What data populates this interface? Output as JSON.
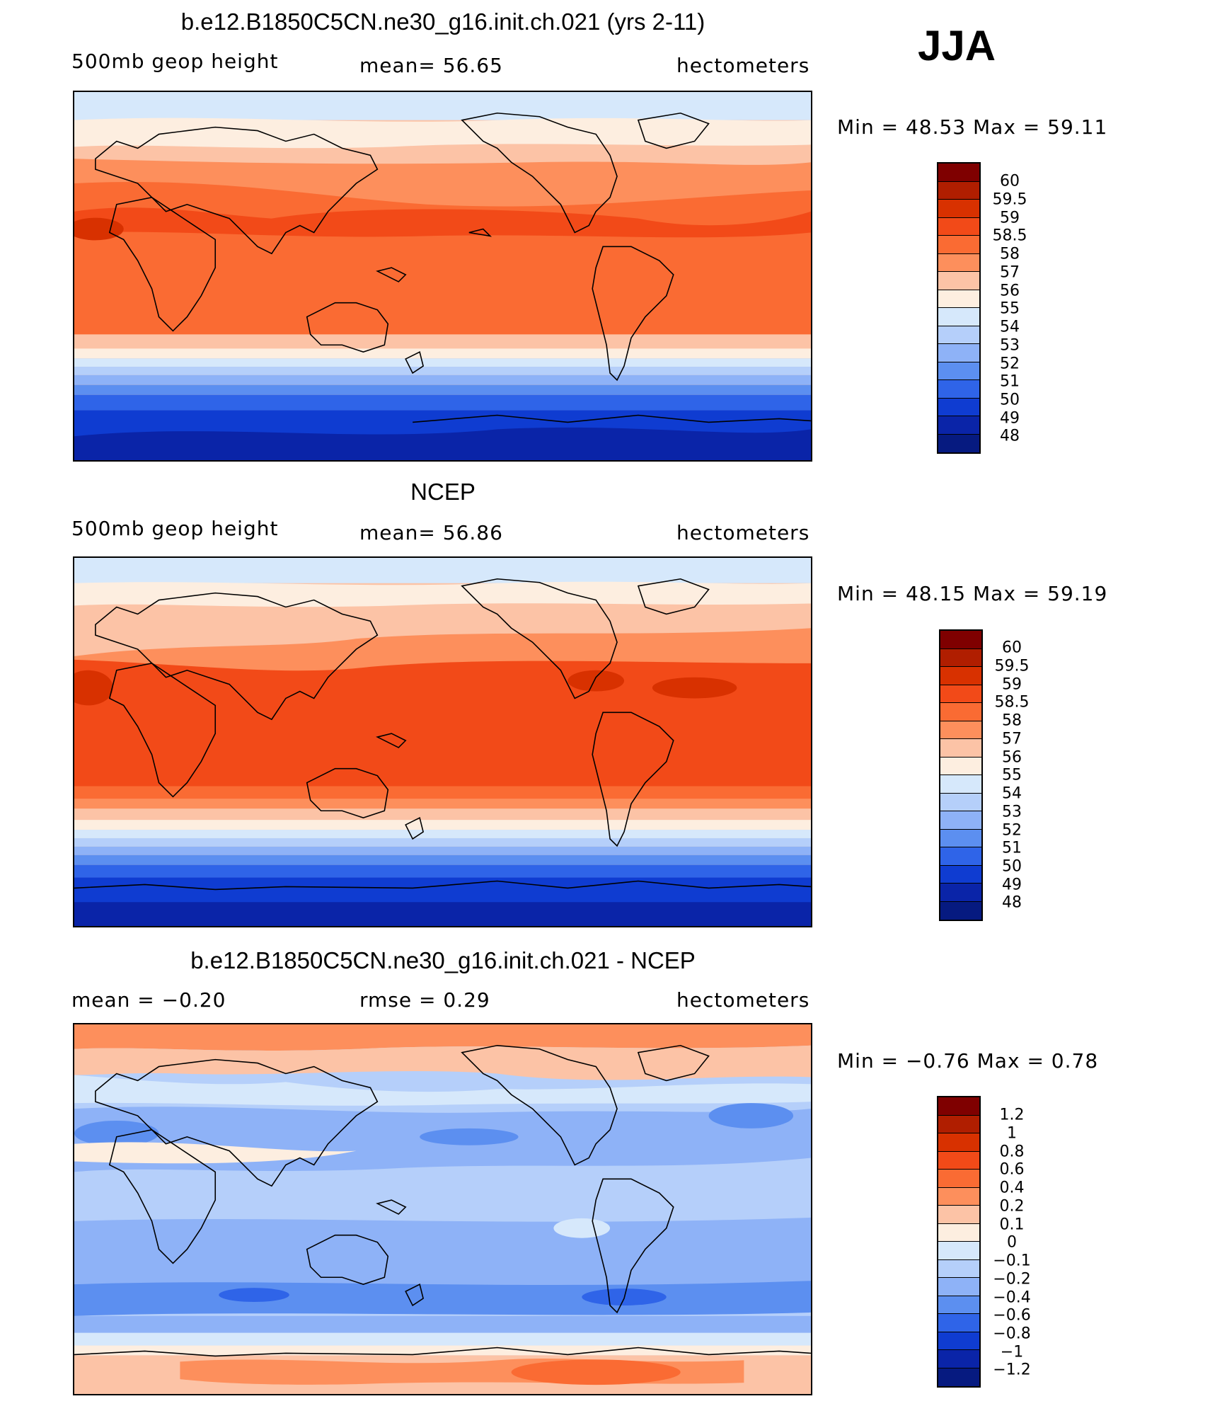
{
  "season": "JJA",
  "panels": [
    {
      "title": "b.e12.B1850C5CN.ne30_g16.init.ch.021 (yrs 2-11)",
      "left_label": "500mb  geop  height",
      "center_label": "mean=   56.65",
      "right_label": "hectometers",
      "minmax": "Min  =    48.53  Max  =    59.11",
      "colorbar_labels": [
        "60",
        "59.5",
        "59",
        "58.5",
        "58",
        "57",
        "56",
        "55",
        "54",
        "53",
        "52",
        "51",
        "50",
        "49",
        "48"
      ]
    },
    {
      "title": "NCEP",
      "left_label": "500mb  geop  height",
      "center_label": "mean=   56.86",
      "right_label": "hectometers",
      "minmax": "Min  =    48.15  Max  =    59.19",
      "colorbar_labels": [
        "60",
        "59.5",
        "59",
        "58.5",
        "58",
        "57",
        "56",
        "55",
        "54",
        "53",
        "52",
        "51",
        "50",
        "49",
        "48"
      ]
    },
    {
      "title": "b.e12.B1850C5CN.ne30_g16.init.ch.021 - NCEP",
      "left_label": "mean  =   −0.20",
      "center_label": "rmse  =     0.29",
      "right_label": "hectometers",
      "minmax": "Min  =   −0.76  Max  =     0.78",
      "colorbar_labels": [
        "1.2",
        "1",
        "0.8",
        "0.6",
        "0.4",
        "0.2",
        "0.1",
        "0",
        "−0.1",
        "−0.2",
        "−0.4",
        "−0.6",
        "−0.8",
        "−1",
        "−1.2"
      ]
    }
  ],
  "colors": {
    "scale": [
      "#7f0000",
      "#b01e00",
      "#d83100",
      "#f24a18",
      "#fa6b33",
      "#fd8f5c",
      "#fcc3a6",
      "#fdeee0",
      "#d6e8fb",
      "#b5cffa",
      "#8eb2f7",
      "#5c8ff0",
      "#2f64e8",
      "#0f3cd1",
      "#0a24a8",
      "#061a80"
    ]
  }
}
